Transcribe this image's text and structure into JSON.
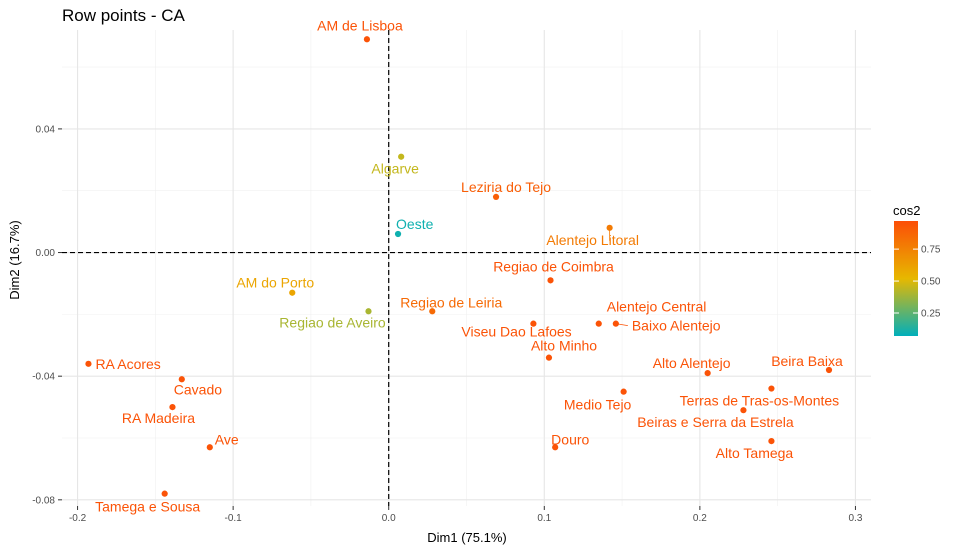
{
  "chart_data": {
    "type": "scatter",
    "title": "Row points - CA",
    "xlabel": "Dim1 (75.1%)",
    "ylabel": "Dim2 (16.7%)",
    "xlim": [
      -0.21,
      0.31
    ],
    "ylim": [
      -0.082,
      0.072
    ],
    "xticks": [
      -0.2,
      -0.1,
      0.0,
      0.1,
      0.2,
      0.3
    ],
    "xtick_labels": [
      "-0.2",
      "-0.1",
      "0.0",
      "0.1",
      "0.2",
      "0.3"
    ],
    "yticks": [
      -0.08,
      -0.04,
      0.0,
      0.04
    ],
    "ytick_labels": [
      "-0.08",
      "-0.04",
      "0.00",
      "0.04"
    ],
    "grid": true,
    "reference_lines": {
      "x": 0,
      "y": 0,
      "style": "dashed"
    },
    "legend": {
      "title": "cos2",
      "position": "right",
      "ticks": [
        0.25,
        0.5,
        0.75
      ],
      "tick_labels": [
        "0.25",
        "0.50",
        "0.75"
      ],
      "range": [
        0.07,
        0.97
      ],
      "colors": [
        "#00AFBB",
        "#E7B800",
        "#FC4E07"
      ]
    },
    "points": [
      {
        "label": "AM de Lisboa",
        "x": -0.014,
        "y": 0.069,
        "cos2": 0.95
      },
      {
        "label": "Algarve",
        "x": 0.008,
        "y": 0.031,
        "cos2": 0.45
      },
      {
        "label": "Leziria do Tejo",
        "x": 0.069,
        "y": 0.018,
        "cos2": 0.9
      },
      {
        "label": "Oeste",
        "x": 0.006,
        "y": 0.006,
        "cos2": 0.1
      },
      {
        "label": "Alentejo Litoral",
        "x": 0.142,
        "y": 0.008,
        "cos2": 0.78
      },
      {
        "label": "Regiao de Coimbra",
        "x": 0.104,
        "y": -0.009,
        "cos2": 0.95
      },
      {
        "label": "AM do Porto",
        "x": -0.062,
        "y": -0.013,
        "cos2": 0.6
      },
      {
        "label": "Regiao de Aveiro",
        "x": -0.013,
        "y": -0.019,
        "cos2": 0.4
      },
      {
        "label": "Regiao de Leiria",
        "x": 0.028,
        "y": -0.019,
        "cos2": 0.85
      },
      {
        "label": "Viseu Dao Lafoes",
        "x": 0.093,
        "y": -0.023,
        "cos2": 0.95
      },
      {
        "label": "Alentejo Central",
        "x": 0.135,
        "y": -0.023,
        "cos2": 0.95
      },
      {
        "label": "Baixo Alentejo",
        "x": 0.146,
        "y": -0.023,
        "cos2": 0.95
      },
      {
        "label": "Alto Minho",
        "x": 0.103,
        "y": -0.034,
        "cos2": 0.95
      },
      {
        "label": "RA Acores",
        "x": -0.193,
        "y": -0.036,
        "cos2": 0.95
      },
      {
        "label": "Alto Alentejo",
        "x": 0.205,
        "y": -0.039,
        "cos2": 0.95
      },
      {
        "label": "Beira Baixa",
        "x": 0.283,
        "y": -0.038,
        "cos2": 0.95
      },
      {
        "label": "Cavado",
        "x": -0.133,
        "y": -0.041,
        "cos2": 0.95
      },
      {
        "label": "Terras de Tras-os-Montes",
        "x": 0.246,
        "y": -0.044,
        "cos2": 0.95
      },
      {
        "label": "Medio Tejo",
        "x": 0.151,
        "y": -0.045,
        "cos2": 0.95
      },
      {
        "label": "RA Madeira",
        "x": -0.139,
        "y": -0.05,
        "cos2": 0.95
      },
      {
        "label": "Beiras e Serra da Estrela",
        "x": 0.228,
        "y": -0.051,
        "cos2": 0.95
      },
      {
        "label": "Ave",
        "x": -0.115,
        "y": -0.063,
        "cos2": 0.95
      },
      {
        "label": "Douro",
        "x": 0.107,
        "y": -0.063,
        "cos2": 0.95
      },
      {
        "label": "Alto Tamega",
        "x": 0.246,
        "y": -0.061,
        "cos2": 0.95
      },
      {
        "label": "Tamega e Sousa",
        "x": -0.144,
        "y": -0.078,
        "cos2": 0.95
      }
    ]
  }
}
